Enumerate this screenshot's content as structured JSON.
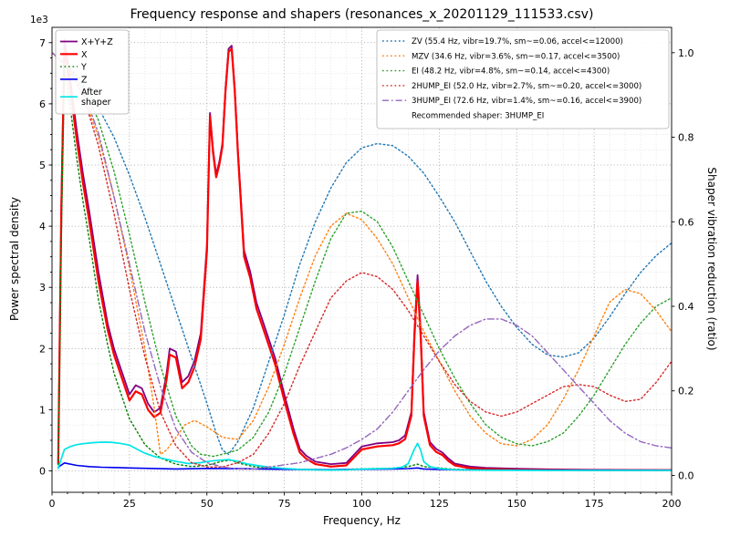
{
  "chart_data": {
    "type": "line",
    "title": "Frequency response and shapers (resonances_x_20201129_111533.csv)",
    "xlabel": "Frequency, Hz",
    "ylabel_left": "Power spectral density",
    "ylabel_right": "Shaper vibration reduction (ratio)",
    "legend_note": "Recommended shaper: 3HUMP_EI",
    "grid": {
      "major_color": "#9a9a9a",
      "minor_color": "#d5d5d5"
    },
    "x_axis": {
      "lim": [
        0,
        200
      ],
      "ticks": [
        0,
        25,
        50,
        75,
        100,
        125,
        150,
        175,
        200
      ],
      "minor_step": 5
    },
    "left_axis": {
      "lim": [
        -350,
        7250
      ],
      "ticks": [
        0,
        1000,
        2000,
        3000,
        4000,
        5000,
        6000,
        7000
      ],
      "tick_labels": [
        "0",
        "1",
        "2",
        "3",
        "4",
        "5",
        "6",
        "7"
      ],
      "offset_text": "1e3",
      "minor_step": 250
    },
    "right_axis": {
      "lim": [
        -0.04,
        1.06
      ],
      "ticks": [
        0,
        0.2,
        0.4,
        0.6,
        0.8,
        1.0
      ],
      "tick_labels": [
        "0.0",
        "0.2",
        "0.4",
        "0.6",
        "0.8",
        "1.0"
      ]
    },
    "psd_series": [
      {
        "name": "X+Y+Z",
        "label": "X+Y+Z",
        "color": "#800080",
        "style": "solid",
        "width": 1.8,
        "axis": "left",
        "x": [
          2,
          3,
          4,
          6,
          8,
          10,
          12,
          15,
          18,
          20,
          22,
          25,
          27,
          29,
          31,
          33,
          35,
          37,
          38,
          40,
          42,
          44,
          46,
          48,
          50,
          51,
          52,
          53,
          54,
          55,
          56,
          57,
          58,
          59,
          60,
          62,
          64,
          66,
          68,
          70,
          72,
          75,
          78,
          80,
          82,
          85,
          90,
          95,
          100,
          105,
          110,
          112,
          114,
          116,
          117,
          118,
          119,
          120,
          122,
          124,
          126,
          128,
          130,
          135,
          140,
          150,
          160,
          175,
          200
        ],
        "y": [
          140,
          4400,
          7050,
          6350,
          5550,
          4850,
          4250,
          3250,
          2400,
          2000,
          1700,
          1250,
          1400,
          1350,
          1100,
          960,
          1030,
          1600,
          2000,
          1950,
          1450,
          1550,
          1800,
          2250,
          3700,
          5850,
          5250,
          4850,
          5050,
          5350,
          6250,
          6900,
          6950,
          6250,
          5250,
          3600,
          3250,
          2750,
          2450,
          2150,
          1850,
          1250,
          680,
          360,
          250,
          150,
          110,
          130,
          400,
          450,
          470,
          500,
          580,
          960,
          2300,
          3200,
          2300,
          960,
          470,
          360,
          300,
          200,
          120,
          70,
          50,
          35,
          25,
          18,
          15
        ]
      },
      {
        "name": "X",
        "label": "X",
        "color": "#ff0000",
        "style": "solid",
        "width": 2.2,
        "axis": "left",
        "x": [
          2,
          3,
          4,
          6,
          8,
          10,
          12,
          15,
          18,
          20,
          22,
          25,
          27,
          29,
          31,
          33,
          35,
          37,
          38,
          40,
          42,
          44,
          46,
          48,
          50,
          51,
          52,
          53,
          54,
          55,
          56,
          57,
          58,
          59,
          60,
          62,
          64,
          66,
          68,
          70,
          72,
          75,
          78,
          80,
          82,
          85,
          90,
          95,
          100,
          105,
          110,
          112,
          114,
          116,
          117,
          118,
          119,
          120,
          122,
          124,
          126,
          128,
          130,
          135,
          140,
          150,
          160,
          175,
          200
        ],
        "y": [
          120,
          4200,
          6900,
          6200,
          5400,
          4700,
          4100,
          3100,
          2300,
          1900,
          1600,
          1150,
          1300,
          1250,
          1000,
          880,
          950,
          1500,
          1900,
          1850,
          1350,
          1450,
          1700,
          2150,
          3600,
          5800,
          5200,
          4800,
          5000,
          5300,
          6200,
          6850,
          6900,
          6200,
          5200,
          3500,
          3150,
          2650,
          2350,
          2050,
          1750,
          1150,
          600,
          300,
          200,
          110,
          70,
          90,
          350,
          400,
          420,
          450,
          520,
          900,
          2200,
          3100,
          2200,
          900,
          420,
          310,
          260,
          160,
          90,
          45,
          30,
          20,
          15,
          10,
          10
        ]
      },
      {
        "name": "Y",
        "label": "Y",
        "color": "#008000",
        "style": "dotted",
        "width": 1.4,
        "axis": "left",
        "x": [
          2,
          3,
          4,
          6,
          8,
          10,
          12,
          15,
          18,
          20,
          25,
          30,
          35,
          40,
          45,
          50,
          55,
          58,
          60,
          65,
          70,
          80,
          90,
          100,
          110,
          115,
          118,
          120,
          130,
          140,
          160,
          200
        ],
        "y": [
          100,
          3800,
          6600,
          5900,
          5100,
          4400,
          3800,
          2800,
          2050,
          1600,
          850,
          430,
          210,
          110,
          70,
          90,
          160,
          175,
          130,
          70,
          45,
          25,
          18,
          35,
          45,
          70,
          110,
          70,
          25,
          18,
          12,
          10
        ]
      },
      {
        "name": "Z",
        "label": "Z",
        "color": "#0000ee",
        "style": "solid",
        "width": 1.6,
        "axis": "left",
        "x": [
          2,
          4,
          8,
          12,
          16,
          20,
          25,
          30,
          40,
          50,
          60,
          70,
          80,
          90,
          100,
          110,
          115,
          118,
          120,
          130,
          140,
          160,
          200
        ],
        "y": [
          60,
          130,
          90,
          70,
          60,
          55,
          48,
          42,
          32,
          40,
          36,
          28,
          22,
          20,
          26,
          32,
          38,
          48,
          32,
          18,
          15,
          12,
          10
        ]
      },
      {
        "name": "After shaper",
        "label": "After\nshaper",
        "color": "#00e5e5",
        "style": "solid",
        "width": 1.7,
        "axis": "left",
        "x": [
          2,
          3,
          4,
          6,
          8,
          10,
          13,
          16,
          19,
          22,
          25,
          28,
          30,
          33,
          36,
          40,
          44,
          48,
          51,
          54,
          57,
          60,
          63,
          66,
          70,
          75,
          80,
          85,
          90,
          95,
          100,
          105,
          110,
          113,
          115,
          117,
          118,
          119,
          120,
          122,
          125,
          130,
          140,
          160,
          200
        ],
        "y": [
          40,
          200,
          350,
          400,
          430,
          445,
          460,
          470,
          468,
          450,
          420,
          340,
          290,
          235,
          200,
          155,
          120,
          135,
          160,
          175,
          185,
          155,
          115,
          90,
          62,
          40,
          26,
          16,
          13,
          16,
          30,
          36,
          42,
          60,
          120,
          360,
          450,
          340,
          150,
          70,
          38,
          18,
          10,
          8,
          8
        ]
      }
    ],
    "shaper_series": [
      {
        "name": "ZV",
        "label": "ZV (55.4 Hz, vibr=19.7%, sm~=0.06, accel<=12000)",
        "color": "#1f77b4",
        "style": "dotted",
        "width": 1.4,
        "axis": "right",
        "x": [
          0,
          5,
          10,
          15,
          20,
          25,
          30,
          35,
          40,
          45,
          50,
          53,
          55,
          57,
          60,
          65,
          70,
          75,
          80,
          85,
          90,
          95,
          100,
          105,
          110,
          115,
          120,
          125,
          130,
          135,
          140,
          145,
          150,
          155,
          160,
          165,
          170,
          175,
          180,
          185,
          190,
          195,
          200
        ],
        "y": [
          1.0,
          0.97,
          0.93,
          0.87,
          0.8,
          0.71,
          0.61,
          0.5,
          0.39,
          0.28,
          0.17,
          0.1,
          0.06,
          0.05,
          0.08,
          0.16,
          0.27,
          0.38,
          0.5,
          0.6,
          0.68,
          0.74,
          0.775,
          0.785,
          0.78,
          0.755,
          0.715,
          0.66,
          0.6,
          0.53,
          0.46,
          0.4,
          0.35,
          0.31,
          0.285,
          0.28,
          0.29,
          0.325,
          0.375,
          0.43,
          0.48,
          0.52,
          0.55
        ]
      },
      {
        "name": "MZV",
        "label": "MZV (34.6 Hz, vibr=3.6%, sm~=0.17, accel<=3500)",
        "color": "#ff7f0e",
        "style": "dotted",
        "width": 1.4,
        "axis": "right",
        "x": [
          0,
          5,
          10,
          15,
          20,
          25,
          30,
          33,
          35,
          37,
          40,
          43,
          46,
          50,
          55,
          60,
          65,
          70,
          75,
          80,
          85,
          90,
          95,
          100,
          105,
          110,
          115,
          120,
          125,
          130,
          135,
          140,
          145,
          150,
          155,
          160,
          165,
          170,
          175,
          180,
          185,
          190,
          195,
          200
        ],
        "y": [
          1.0,
          0.965,
          0.9,
          0.8,
          0.66,
          0.49,
          0.3,
          0.16,
          0.05,
          0.06,
          0.09,
          0.12,
          0.13,
          0.115,
          0.09,
          0.085,
          0.13,
          0.21,
          0.31,
          0.42,
          0.52,
          0.59,
          0.62,
          0.605,
          0.56,
          0.5,
          0.42,
          0.34,
          0.27,
          0.2,
          0.14,
          0.1,
          0.075,
          0.07,
          0.085,
          0.12,
          0.18,
          0.25,
          0.33,
          0.41,
          0.44,
          0.43,
          0.39,
          0.34
        ]
      },
      {
        "name": "EI",
        "label": "EI (48.2 Hz, vibr=4.8%, sm~=0.14, accel<=4300)",
        "color": "#2ca02c",
        "style": "dotted",
        "width": 1.4,
        "axis": "right",
        "x": [
          0,
          5,
          10,
          15,
          20,
          25,
          30,
          35,
          40,
          45,
          48,
          52,
          55,
          60,
          65,
          70,
          75,
          80,
          85,
          90,
          95,
          100,
          105,
          110,
          115,
          120,
          125,
          130,
          135,
          140,
          145,
          150,
          155,
          160,
          165,
          170,
          175,
          180,
          185,
          190,
          195,
          200
        ],
        "y": [
          1.0,
          0.97,
          0.92,
          0.84,
          0.72,
          0.57,
          0.41,
          0.26,
          0.14,
          0.07,
          0.05,
          0.045,
          0.05,
          0.06,
          0.09,
          0.15,
          0.24,
          0.35,
          0.46,
          0.56,
          0.62,
          0.625,
          0.6,
          0.54,
          0.46,
          0.38,
          0.3,
          0.23,
          0.17,
          0.12,
          0.09,
          0.075,
          0.07,
          0.08,
          0.1,
          0.14,
          0.19,
          0.25,
          0.31,
          0.36,
          0.4,
          0.42
        ]
      },
      {
        "name": "2HUMP_EI",
        "label": "2HUMP_EI (52.0 Hz, vibr=2.7%, sm~=0.20, accel<=3000)",
        "color": "#d62728",
        "style": "dotted",
        "width": 1.4,
        "axis": "right",
        "x": [
          0,
          5,
          10,
          15,
          20,
          25,
          30,
          35,
          40,
          45,
          50,
          55,
          60,
          65,
          70,
          75,
          80,
          85,
          90,
          95,
          100,
          105,
          110,
          115,
          120,
          125,
          130,
          135,
          140,
          145,
          150,
          155,
          160,
          165,
          170,
          175,
          180,
          185,
          190,
          195,
          200
        ],
        "y": [
          1.0,
          0.965,
          0.9,
          0.78,
          0.62,
          0.44,
          0.28,
          0.15,
          0.07,
          0.03,
          0.02,
          0.02,
          0.03,
          0.05,
          0.1,
          0.17,
          0.26,
          0.34,
          0.42,
          0.46,
          0.48,
          0.47,
          0.44,
          0.39,
          0.33,
          0.27,
          0.215,
          0.175,
          0.15,
          0.14,
          0.15,
          0.17,
          0.19,
          0.21,
          0.215,
          0.21,
          0.19,
          0.175,
          0.18,
          0.22,
          0.27
        ]
      },
      {
        "name": "3HUMP_EI",
        "label": "3HUMP_EI (72.6 Hz, vibr=1.4%, sm~=0.16, accel<=3900)",
        "color": "#9467bd",
        "style": "dashdot",
        "width": 1.4,
        "axis": "right",
        "x": [
          0,
          5,
          10,
          15,
          20,
          25,
          30,
          35,
          40,
          45,
          50,
          55,
          60,
          65,
          70,
          75,
          80,
          85,
          90,
          95,
          100,
          105,
          110,
          115,
          120,
          125,
          130,
          135,
          140,
          145,
          150,
          155,
          160,
          165,
          170,
          175,
          180,
          185,
          190,
          195,
          200
        ],
        "y": [
          1.0,
          0.97,
          0.91,
          0.81,
          0.66,
          0.5,
          0.34,
          0.21,
          0.11,
          0.055,
          0.03,
          0.02,
          0.015,
          0.015,
          0.02,
          0.025,
          0.03,
          0.04,
          0.05,
          0.065,
          0.085,
          0.11,
          0.15,
          0.2,
          0.25,
          0.295,
          0.33,
          0.355,
          0.37,
          0.37,
          0.355,
          0.33,
          0.29,
          0.25,
          0.21,
          0.17,
          0.13,
          0.1,
          0.08,
          0.07,
          0.065
        ]
      }
    ]
  }
}
